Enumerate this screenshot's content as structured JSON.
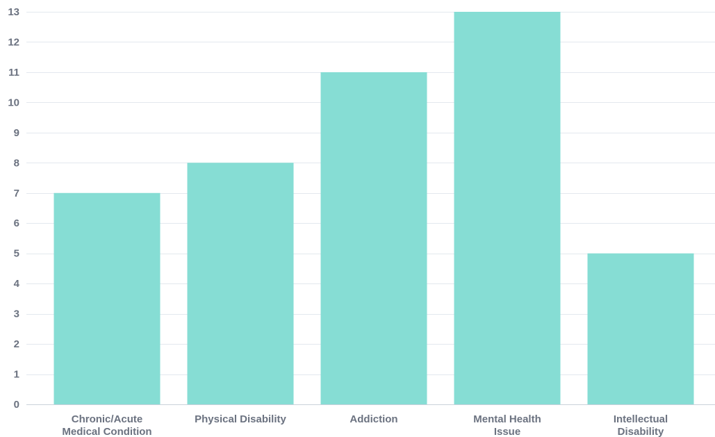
{
  "chart_data": {
    "type": "bar",
    "categories": [
      [
        "Chronic/Acute",
        "Medical Condition"
      ],
      [
        "Physical Disability"
      ],
      [
        "Addiction"
      ],
      [
        "Mental Health",
        "Issue"
      ],
      [
        "Intellectual",
        "Disability"
      ]
    ],
    "values": [
      7,
      8,
      11,
      13,
      5
    ],
    "title": "",
    "xlabel": "",
    "ylabel": "",
    "ylim": [
      0,
      13
    ],
    "yticks": [
      0,
      1,
      2,
      3,
      4,
      5,
      6,
      7,
      8,
      9,
      10,
      11,
      12,
      13
    ],
    "grid": true,
    "legend": "none",
    "bar_color": "#86ddd4"
  }
}
